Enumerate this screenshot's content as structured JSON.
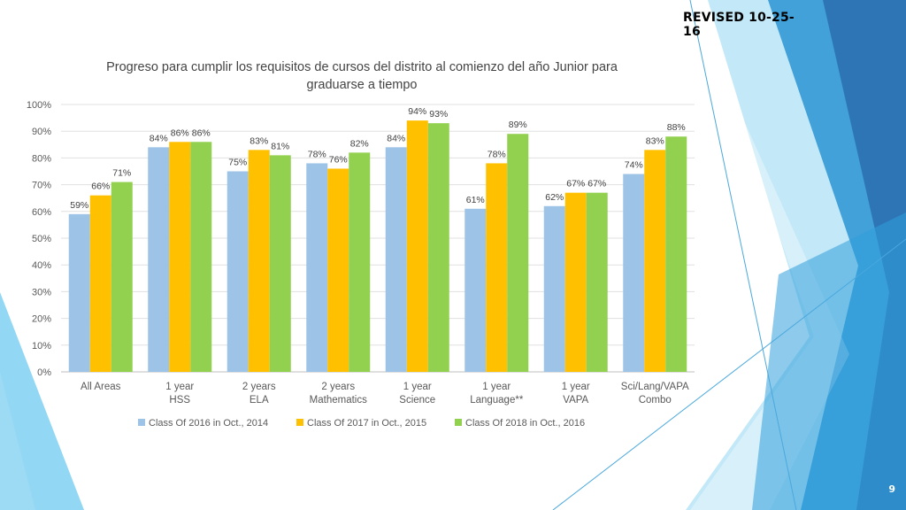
{
  "slide": {
    "revised_label": "REVISED 10-25-16",
    "page_number": "9",
    "theme_colors": [
      "#2e75b6",
      "#41a1d8",
      "#6cc6ee",
      "#9fdcf5",
      "#1f4e79"
    ]
  },
  "chart_data": {
    "type": "bar",
    "title": "Progreso para cumplir los requisitos de cursos del distrito al comienzo del año Junior para graduarse a tiempo",
    "title_lines": [
      "Progreso para cumplir los requisitos de cursos del distrito al comienzo del año Junior para",
      "graduarse a tiempo"
    ],
    "categories": [
      [
        "All Areas"
      ],
      [
        "1 year",
        "HSS"
      ],
      [
        "2 years",
        "ELA"
      ],
      [
        "2 years",
        "Mathematics"
      ],
      [
        "1 year",
        "Science"
      ],
      [
        "1 year",
        "Language**"
      ],
      [
        "1 year",
        "VAPA"
      ],
      [
        "Sci/Lang/VAPA",
        "Combo"
      ]
    ],
    "series": [
      {
        "name": "Class Of 2016 in Oct., 2014",
        "color": "#9dc3e6",
        "values": [
          59,
          84,
          75,
          78,
          84,
          61,
          62,
          74
        ]
      },
      {
        "name": "Class Of 2017 in Oct., 2015",
        "color": "#ffc000",
        "values": [
          66,
          86,
          83,
          76,
          94,
          78,
          67,
          83
        ]
      },
      {
        "name": "Class Of 2018 in Oct., 2016",
        "color": "#92d050",
        "values": [
          71,
          86,
          81,
          82,
          93,
          89,
          67,
          88
        ]
      }
    ],
    "y_ticks": [
      "0%",
      "10%",
      "20%",
      "30%",
      "40%",
      "50%",
      "60%",
      "70%",
      "80%",
      "90%",
      "100%"
    ],
    "ylim": [
      0,
      100
    ],
    "value_suffix": "%",
    "grid": true,
    "legend_position": "bottom",
    "xlabel": "",
    "ylabel": ""
  }
}
